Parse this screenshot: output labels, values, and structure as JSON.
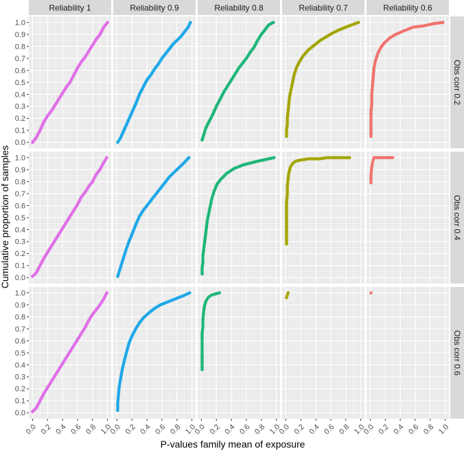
{
  "chart_data": {
    "type": "scatter",
    "xlabel": "P-values family mean of exposure",
    "ylabel": "Cumulative proportion of samples",
    "xlim": [
      0,
      1
    ],
    "ylim": [
      0,
      1
    ],
    "x_ticks": [
      "0.0",
      "0.2",
      "0.4",
      "0.6",
      "0.8",
      "1.0"
    ],
    "y_ticks": [
      "0.0",
      "0.1",
      "0.2",
      "0.3",
      "0.4",
      "0.5",
      "0.6",
      "0.7",
      "0.8",
      "0.9",
      "1.0"
    ],
    "grid": true,
    "legend": "none",
    "columns": [
      "Reliability 1",
      "Reliability 0.9",
      "Reliability 0.8",
      "Reliability 0.7",
      "Reliability 0.6"
    ],
    "rows": [
      "Obs corr 0.2",
      "Obs corr 0.4",
      "Obs corr 0.6"
    ],
    "column_colors": [
      "#e06fe8",
      "#1fa8e8",
      "#1fb679",
      "#a3a500",
      "#f0736d"
    ],
    "panels": [
      [
        {
          "points": [
            [
              0,
              0
            ],
            [
              0.05,
              0.04
            ],
            [
              0.1,
              0.1
            ],
            [
              0.15,
              0.17
            ],
            [
              0.2,
              0.22
            ],
            [
              0.25,
              0.26
            ],
            [
              0.3,
              0.31
            ],
            [
              0.35,
              0.36
            ],
            [
              0.4,
              0.41
            ],
            [
              0.45,
              0.46
            ],
            [
              0.5,
              0.5
            ],
            [
              0.55,
              0.56
            ],
            [
              0.6,
              0.62
            ],
            [
              0.65,
              0.67
            ],
            [
              0.7,
              0.71
            ],
            [
              0.75,
              0.76
            ],
            [
              0.8,
              0.81
            ],
            [
              0.85,
              0.86
            ],
            [
              0.9,
              0.9
            ],
            [
              0.95,
              0.96
            ],
            [
              1.0,
              1.0
            ]
          ]
        },
        {
          "points": [
            [
              0.01,
              0
            ],
            [
              0.05,
              0.04
            ],
            [
              0.1,
              0.11
            ],
            [
              0.15,
              0.18
            ],
            [
              0.2,
              0.25
            ],
            [
              0.25,
              0.32
            ],
            [
              0.3,
              0.4
            ],
            [
              0.35,
              0.46
            ],
            [
              0.4,
              0.52
            ],
            [
              0.45,
              0.56
            ],
            [
              0.5,
              0.61
            ],
            [
              0.55,
              0.65
            ],
            [
              0.6,
              0.7
            ],
            [
              0.65,
              0.74
            ],
            [
              0.7,
              0.78
            ],
            [
              0.75,
              0.82
            ],
            [
              0.8,
              0.85
            ],
            [
              0.85,
              0.88
            ],
            [
              0.9,
              0.92
            ],
            [
              0.95,
              0.96
            ],
            [
              0.98,
              1.0
            ]
          ]
        },
        {
          "points": [
            [
              0.01,
              0.02
            ],
            [
              0.03,
              0.06
            ],
            [
              0.06,
              0.12
            ],
            [
              0.1,
              0.17
            ],
            [
              0.15,
              0.23
            ],
            [
              0.2,
              0.3
            ],
            [
              0.25,
              0.36
            ],
            [
              0.3,
              0.42
            ],
            [
              0.35,
              0.47
            ],
            [
              0.4,
              0.52
            ],
            [
              0.45,
              0.57
            ],
            [
              0.5,
              0.62
            ],
            [
              0.55,
              0.66
            ],
            [
              0.6,
              0.7
            ],
            [
              0.65,
              0.75
            ],
            [
              0.7,
              0.79
            ],
            [
              0.75,
              0.85
            ],
            [
              0.8,
              0.9
            ],
            [
              0.85,
              0.94
            ],
            [
              0.9,
              0.98
            ],
            [
              0.96,
              1.0
            ]
          ]
        },
        {
          "points": [
            [
              0.01,
              0.05
            ],
            [
              0.01,
              0.1
            ],
            [
              0.02,
              0.15
            ],
            [
              0.02,
              0.2
            ],
            [
              0.03,
              0.26
            ],
            [
              0.04,
              0.32
            ],
            [
              0.05,
              0.38
            ],
            [
              0.07,
              0.44
            ],
            [
              0.09,
              0.5
            ],
            [
              0.11,
              0.56
            ],
            [
              0.14,
              0.62
            ],
            [
              0.18,
              0.67
            ],
            [
              0.23,
              0.72
            ],
            [
              0.3,
              0.77
            ],
            [
              0.38,
              0.81
            ],
            [
              0.46,
              0.85
            ],
            [
              0.54,
              0.88
            ],
            [
              0.62,
              0.91
            ],
            [
              0.72,
              0.94
            ],
            [
              0.84,
              0.97
            ],
            [
              0.97,
              1.0
            ]
          ]
        },
        {
          "points": [
            [
              0.01,
              0.05
            ],
            [
              0.01,
              0.08
            ],
            [
              0.01,
              0.12
            ],
            [
              0.01,
              0.18
            ],
            [
              0.01,
              0.25
            ],
            [
              0.02,
              0.32
            ],
            [
              0.02,
              0.4
            ],
            [
              0.03,
              0.47
            ],
            [
              0.04,
              0.55
            ],
            [
              0.05,
              0.62
            ],
            [
              0.07,
              0.68
            ],
            [
              0.1,
              0.74
            ],
            [
              0.14,
              0.79
            ],
            [
              0.19,
              0.83
            ],
            [
              0.26,
              0.87
            ],
            [
              0.34,
              0.9
            ],
            [
              0.45,
              0.93
            ],
            [
              0.57,
              0.96
            ],
            [
              0.7,
              0.97
            ],
            [
              0.85,
              0.99
            ],
            [
              0.97,
              1.0
            ]
          ]
        }
      ],
      [
        {
          "points": [
            [
              0,
              0.01
            ],
            [
              0.05,
              0.04
            ],
            [
              0.1,
              0.1
            ],
            [
              0.15,
              0.16
            ],
            [
              0.2,
              0.21
            ],
            [
              0.25,
              0.26
            ],
            [
              0.3,
              0.31
            ],
            [
              0.35,
              0.36
            ],
            [
              0.4,
              0.41
            ],
            [
              0.45,
              0.46
            ],
            [
              0.5,
              0.51
            ],
            [
              0.55,
              0.56
            ],
            [
              0.6,
              0.61
            ],
            [
              0.65,
              0.67
            ],
            [
              0.7,
              0.71
            ],
            [
              0.75,
              0.76
            ],
            [
              0.8,
              0.8
            ],
            [
              0.85,
              0.86
            ],
            [
              0.9,
              0.9
            ],
            [
              0.95,
              0.96
            ],
            [
              0.99,
              1.0
            ]
          ]
        },
        {
          "points": [
            [
              0.01,
              0.01
            ],
            [
              0.04,
              0.07
            ],
            [
              0.08,
              0.15
            ],
            [
              0.12,
              0.23
            ],
            [
              0.16,
              0.3
            ],
            [
              0.2,
              0.36
            ],
            [
              0.25,
              0.44
            ],
            [
              0.3,
              0.51
            ],
            [
              0.35,
              0.56
            ],
            [
              0.4,
              0.6
            ],
            [
              0.45,
              0.64
            ],
            [
              0.5,
              0.68
            ],
            [
              0.55,
              0.72
            ],
            [
              0.6,
              0.76
            ],
            [
              0.65,
              0.8
            ],
            [
              0.7,
              0.84
            ],
            [
              0.75,
              0.87
            ],
            [
              0.8,
              0.9
            ],
            [
              0.85,
              0.93
            ],
            [
              0.9,
              0.96
            ],
            [
              0.96,
              1.0
            ]
          ]
        },
        {
          "points": [
            [
              0.01,
              0.03
            ],
            [
              0.01,
              0.08
            ],
            [
              0.02,
              0.13
            ],
            [
              0.02,
              0.18
            ],
            [
              0.03,
              0.23
            ],
            [
              0.04,
              0.28
            ],
            [
              0.05,
              0.33
            ],
            [
              0.06,
              0.38
            ],
            [
              0.07,
              0.43
            ],
            [
              0.08,
              0.48
            ],
            [
              0.1,
              0.54
            ],
            [
              0.12,
              0.6
            ],
            [
              0.14,
              0.66
            ],
            [
              0.17,
              0.72
            ],
            [
              0.21,
              0.78
            ],
            [
              0.26,
              0.82
            ],
            [
              0.34,
              0.87
            ],
            [
              0.44,
              0.91
            ],
            [
              0.56,
              0.94
            ],
            [
              0.75,
              0.97
            ],
            [
              0.97,
              1.0
            ]
          ]
        },
        {
          "points": [
            [
              0.01,
              0.28
            ],
            [
              0.01,
              0.38
            ],
            [
              0.01,
              0.42
            ],
            [
              0.01,
              0.48
            ],
            [
              0.01,
              0.55
            ],
            [
              0.01,
              0.62
            ],
            [
              0.02,
              0.7
            ],
            [
              0.02,
              0.76
            ],
            [
              0.03,
              0.82
            ],
            [
              0.04,
              0.87
            ],
            [
              0.06,
              0.92
            ],
            [
              0.09,
              0.95
            ],
            [
              0.13,
              0.97
            ],
            [
              0.2,
              0.98
            ],
            [
              0.3,
              0.99
            ],
            [
              0.45,
              0.99
            ],
            [
              0.55,
              1.0
            ],
            [
              0.62,
              1.0
            ],
            [
              0.85,
              1.0
            ]
          ]
        },
        {
          "points": [
            [
              0.01,
              0.79
            ],
            [
              0.01,
              0.85
            ],
            [
              0.02,
              0.92
            ],
            [
              0.03,
              0.96
            ],
            [
              0.04,
              0.98
            ],
            [
              0.05,
              1.0
            ],
            [
              0.3,
              1.0
            ]
          ]
        }
      ],
      [
        {
          "points": [
            [
              0,
              0.01
            ],
            [
              0.05,
              0.04
            ],
            [
              0.1,
              0.1
            ],
            [
              0.15,
              0.16
            ],
            [
              0.2,
              0.21
            ],
            [
              0.25,
              0.26
            ],
            [
              0.3,
              0.31
            ],
            [
              0.35,
              0.36
            ],
            [
              0.4,
              0.41
            ],
            [
              0.45,
              0.46
            ],
            [
              0.5,
              0.51
            ],
            [
              0.55,
              0.56
            ],
            [
              0.6,
              0.61
            ],
            [
              0.65,
              0.66
            ],
            [
              0.7,
              0.71
            ],
            [
              0.75,
              0.77
            ],
            [
              0.8,
              0.82
            ],
            [
              0.85,
              0.86
            ],
            [
              0.9,
              0.9
            ],
            [
              0.95,
              0.95
            ],
            [
              0.99,
              1.0
            ]
          ]
        },
        {
          "points": [
            [
              0.01,
              0.02
            ],
            [
              0.01,
              0.08
            ],
            [
              0.02,
              0.15
            ],
            [
              0.03,
              0.22
            ],
            [
              0.05,
              0.29
            ],
            [
              0.07,
              0.36
            ],
            [
              0.1,
              0.44
            ],
            [
              0.13,
              0.51
            ],
            [
              0.16,
              0.58
            ],
            [
              0.2,
              0.64
            ],
            [
              0.25,
              0.7
            ],
            [
              0.3,
              0.75
            ],
            [
              0.35,
              0.79
            ],
            [
              0.42,
              0.83
            ],
            [
              0.5,
              0.87
            ],
            [
              0.58,
              0.9
            ],
            [
              0.66,
              0.92
            ],
            [
              0.74,
              0.94
            ],
            [
              0.82,
              0.96
            ],
            [
              0.9,
              0.98
            ],
            [
              0.97,
              1.0
            ]
          ]
        },
        {
          "points": [
            [
              0.01,
              0.36
            ],
            [
              0.01,
              0.42
            ],
            [
              0.01,
              0.46
            ],
            [
              0.01,
              0.5
            ],
            [
              0.01,
              0.55
            ],
            [
              0.01,
              0.6
            ],
            [
              0.01,
              0.66
            ],
            [
              0.02,
              0.72
            ],
            [
              0.02,
              0.78
            ],
            [
              0.03,
              0.84
            ],
            [
              0.04,
              0.89
            ],
            [
              0.06,
              0.93
            ],
            [
              0.09,
              0.96
            ],
            [
              0.13,
              0.98
            ],
            [
              0.18,
              0.99
            ],
            [
              0.24,
              1.0
            ]
          ]
        },
        {
          "points": [
            [
              0.01,
              0.96
            ],
            [
              0.02,
              0.98
            ],
            [
              0.03,
              1.0
            ]
          ]
        },
        {
          "points": [
            [
              0.01,
              1.0
            ]
          ]
        }
      ]
    ]
  }
}
